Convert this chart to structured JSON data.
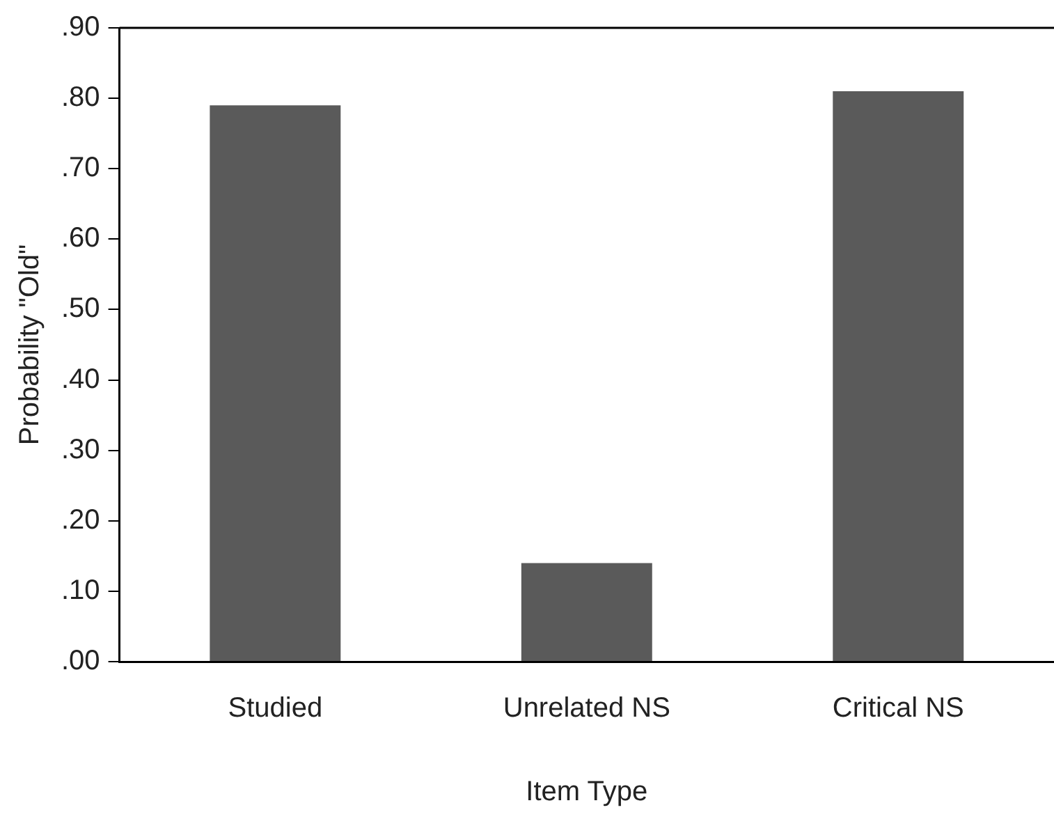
{
  "chart_data": {
    "type": "bar",
    "xlabel": "Item Type",
    "ylabel": "Probability \"Old\"",
    "categories": [
      "Studied",
      "Unrelated NS",
      "Critical NS"
    ],
    "values": [
      0.79,
      0.14,
      0.81
    ],
    "color": "#5a5a5a",
    "ylim": [
      0,
      0.9
    ],
    "yticks": [
      {
        "value": 0,
        "label": ".00"
      },
      {
        "value": 0.1,
        "label": ".10"
      },
      {
        "value": 0.2,
        "label": ".20"
      },
      {
        "value": 0.3,
        "label": ".30"
      },
      {
        "value": 0.4,
        "label": ".40"
      },
      {
        "value": 0.5,
        "label": ".50"
      },
      {
        "value": 0.6,
        "label": ".60"
      },
      {
        "value": 0.7,
        "label": ".70"
      },
      {
        "value": 0.8,
        "label": ".80"
      },
      {
        "value": 0.9,
        "label": ".90"
      }
    ],
    "grid": false,
    "legend": false
  }
}
